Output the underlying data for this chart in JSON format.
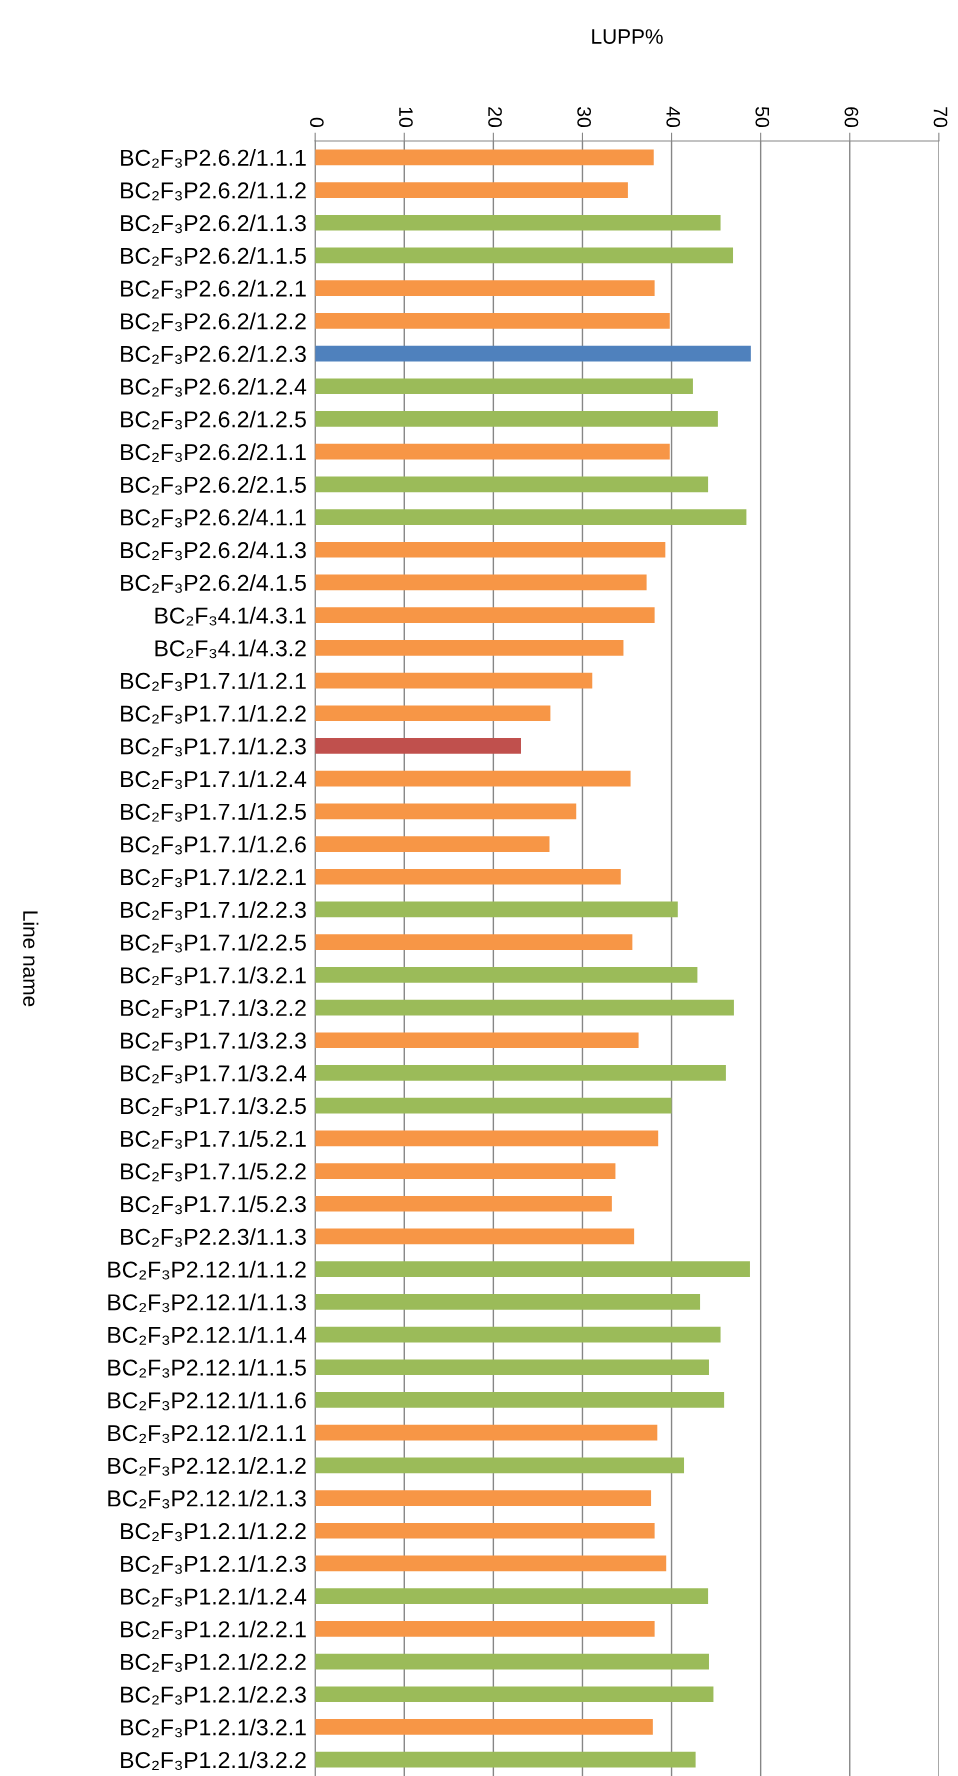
{
  "chart_data": {
    "type": "bar",
    "orientation": "horizontal",
    "xlabel": "LUPP%",
    "ylabel": "Line name",
    "categories": [
      "BC₂F₃P2.6.2/1.1.1",
      "BC₂F₃P2.6.2/1.1.2",
      "BC₂F₃P2.6.2/1.1.3",
      "BC₂F₃P2.6.2/1.1.5",
      "BC₂F₃P2.6.2/1.2.1",
      "BC₂F₃P2.6.2/1.2.2",
      "BC₂F₃P2.6.2/1.2.3",
      "BC₂F₃P2.6.2/1.2.4",
      "BC₂F₃P2.6.2/1.2.5",
      "BC₂F₃P2.6.2/2.1.1",
      "BC₂F₃P2.6.2/2.1.5",
      "BC₂F₃P2.6.2/4.1.1",
      "BC₂F₃P2.6.2/4.1.3",
      "BC₂F₃P2.6.2/4.1.5",
      "BC₂F₃4.1/4.3.1",
      "BC₂F₃4.1/4.3.2",
      "BC₂F₃P1.7.1/1.2.1",
      "BC₂F₃P1.7.1/1.2.2",
      "BC₂F₃P1.7.1/1.2.3",
      "BC₂F₃P1.7.1/1.2.4",
      "BC₂F₃P1.7.1/1.2.5",
      "BC₂F₃P1.7.1/1.2.6",
      "BC₂F₃P1.7.1/2.2.1",
      "BC₂F₃P1.7.1/2.2.3",
      "BC₂F₃P1.7.1/2.2.5",
      "BC₂F₃P1.7.1/3.2.1",
      "BC₂F₃P1.7.1/3.2.2",
      "BC₂F₃P1.7.1/3.2.3",
      "BC₂F₃P1.7.1/3.2.4",
      "BC₂F₃P1.7.1/3.2.5",
      "BC₂F₃P1.7.1/5.2.1",
      "BC₂F₃P1.7.1/5.2.2",
      "BC₂F₃P1.7.1/5.2.3",
      "BC₂F₃P2.2.3/1.1.3",
      "BC₂F₃P2.12.1/1.1.2",
      "BC₂F₃P2.12.1/1.1.3",
      "BC₂F₃P2.12.1/1.1.4",
      "BC₂F₃P2.12.1/1.1.5",
      "BC₂F₃P2.12.1/1.1.6",
      "BC₂F₃P2.12.1/2.1.1",
      "BC₂F₃P2.12.1/2.1.2",
      "BC₂F₃P2.12.1/2.1.3",
      "BC₂F₃P1.2.1/1.2.2",
      "BC₂F₃P1.2.1/1.2.3",
      "BC₂F₃P1.2.1/1.2.4",
      "BC₂F₃P1.2.1/2.2.1",
      "BC₂F₃P1.2.1/2.2.2",
      "BC₂F₃P1.2.1/2.2.3",
      "BC₂F₃P1.2.1/3.2.1",
      "BC₂F₃P1.2.1/3.2.2"
    ],
    "values": [
      38.0,
      35.1,
      45.5,
      46.9,
      38.1,
      39.8,
      48.9,
      42.4,
      45.2,
      39.8,
      44.1,
      48.4,
      39.3,
      37.2,
      38.1,
      34.6,
      31.1,
      26.4,
      23.1,
      35.4,
      29.3,
      26.3,
      34.3,
      40.7,
      35.6,
      42.9,
      47.0,
      36.3,
      46.1,
      40.0,
      38.5,
      33.7,
      33.3,
      35.8,
      48.8,
      43.2,
      45.5,
      44.2,
      45.9,
      38.4,
      41.4,
      37.7,
      38.1,
      39.4,
      44.1,
      38.1,
      44.2,
      44.7,
      37.9,
      42.7
    ],
    "colors": [
      "#f79646",
      "#f79646",
      "#9bbb59",
      "#9bbb59",
      "#f79646",
      "#f79646",
      "#4f81bd",
      "#9bbb59",
      "#9bbb59",
      "#f79646",
      "#9bbb59",
      "#9bbb59",
      "#f79646",
      "#f79646",
      "#f79646",
      "#f79646",
      "#f79646",
      "#f79646",
      "#c0504d",
      "#f79646",
      "#f79646",
      "#f79646",
      "#f79646",
      "#9bbb59",
      "#f79646",
      "#9bbb59",
      "#9bbb59",
      "#f79646",
      "#9bbb59",
      "#9bbb59",
      "#f79646",
      "#f79646",
      "#f79646",
      "#f79646",
      "#9bbb59",
      "#9bbb59",
      "#9bbb59",
      "#9bbb59",
      "#9bbb59",
      "#f79646",
      "#9bbb59",
      "#f79646",
      "#f79646",
      "#f79646",
      "#9bbb59",
      "#f79646",
      "#9bbb59",
      "#9bbb59",
      "#f79646",
      "#9bbb59"
    ],
    "xlim": [
      0,
      70
    ],
    "xticks": [
      0,
      10,
      20,
      30,
      40,
      50,
      60,
      70
    ],
    "grid": "x"
  }
}
